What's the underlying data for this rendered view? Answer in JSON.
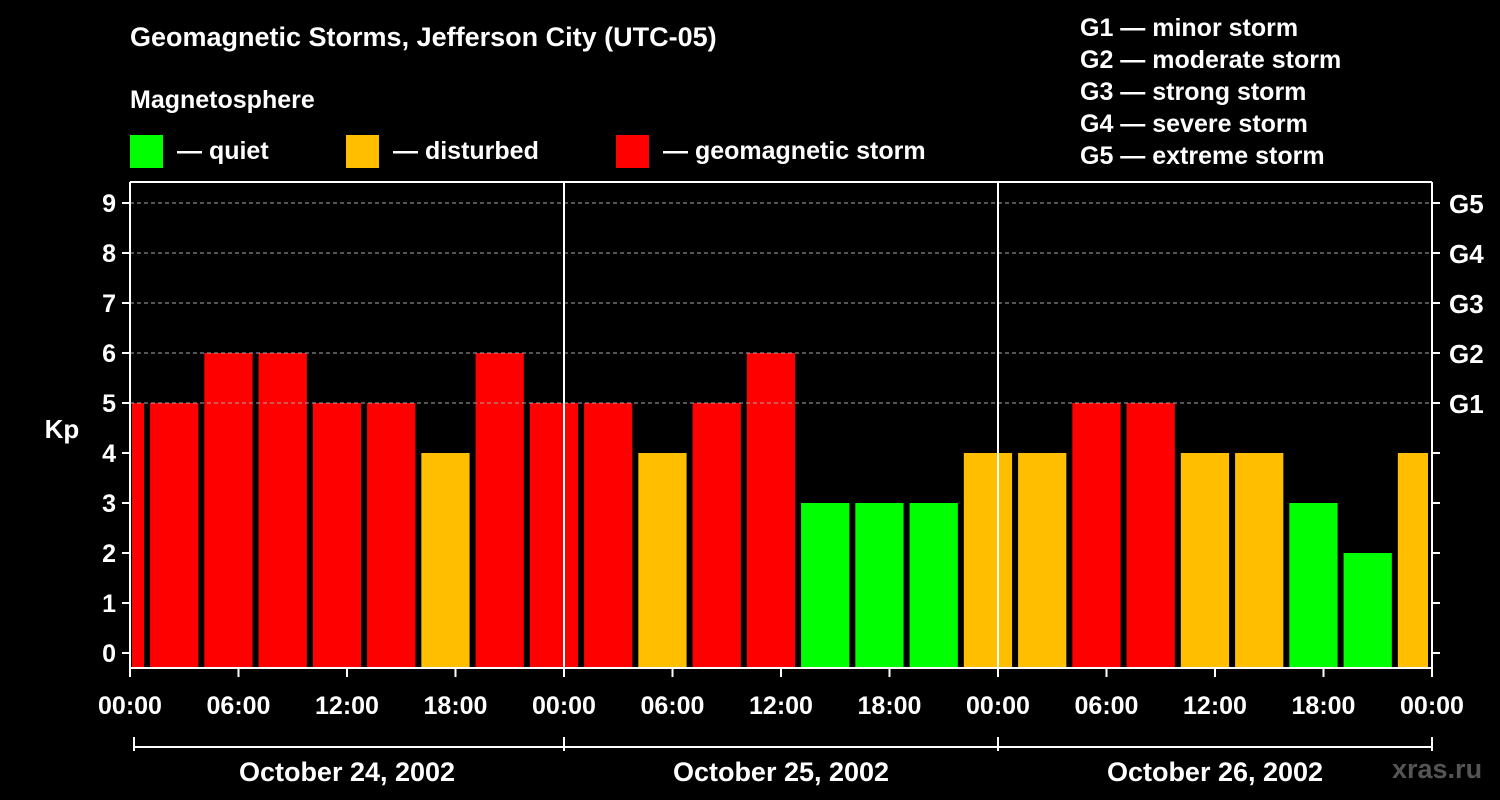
{
  "header": {
    "title": "Geomagnetic Storms, Jefferson City (UTC-05)",
    "subtitle": "Magnetosphere"
  },
  "legend": [
    {
      "label": "— quiet",
      "color": "#00FF00"
    },
    {
      "label": "— disturbed",
      "color": "#FFBF00"
    },
    {
      "label": "— geomagnetic storm",
      "color": "#FF0000"
    }
  ],
  "g_scale": [
    "G1 — minor storm",
    "G2 — moderate storm",
    "G3 — strong storm",
    "G4 — severe storm",
    "G5 — extreme storm"
  ],
  "watermark": "xras.ru",
  "chart_data": {
    "type": "bar",
    "title": "Geomagnetic Storms, Jefferson City (UTC-05)",
    "ylabel": "Kp",
    "ylim": [
      0,
      9
    ],
    "yticks": [
      "0",
      "1",
      "2",
      "3",
      "4",
      "5",
      "6",
      "7",
      "8",
      "9"
    ],
    "right_ticks": [
      {
        "kp": 5,
        "label": "G1"
      },
      {
        "kp": 6,
        "label": "G2"
      },
      {
        "kp": 7,
        "label": "G3"
      },
      {
        "kp": 8,
        "label": "G4"
      },
      {
        "kp": 9,
        "label": "G5"
      }
    ],
    "x_range_hours": [
      0,
      72
    ],
    "x_tick_hours": [
      0,
      6,
      12,
      18,
      24,
      30,
      36,
      42,
      48,
      54,
      60,
      66,
      72
    ],
    "x_tick_labels": [
      "00:00",
      "06:00",
      "12:00",
      "18:00",
      "00:00",
      "06:00",
      "12:00",
      "18:00",
      "00:00",
      "06:00",
      "12:00",
      "18:00",
      "00:00"
    ],
    "day_labels": [
      "October 24, 2002",
      "October 25, 2002",
      "October 26, 2002"
    ],
    "day_boundary_hours": [
      24,
      48
    ],
    "levels": {
      "quiet": "#00FF00",
      "disturbed": "#FFBF00",
      "storm": "#FF0000"
    },
    "bars": [
      {
        "start": 0,
        "end": 1,
        "kp": 5,
        "level": "storm"
      },
      {
        "start": 1,
        "end": 4,
        "kp": 5,
        "level": "storm"
      },
      {
        "start": 4,
        "end": 7,
        "kp": 6,
        "level": "storm"
      },
      {
        "start": 7,
        "end": 10,
        "kp": 6,
        "level": "storm"
      },
      {
        "start": 10,
        "end": 13,
        "kp": 5,
        "level": "storm"
      },
      {
        "start": 13,
        "end": 16,
        "kp": 5,
        "level": "storm"
      },
      {
        "start": 16,
        "end": 19,
        "kp": 4,
        "level": "disturbed"
      },
      {
        "start": 19,
        "end": 22,
        "kp": 6,
        "level": "storm"
      },
      {
        "start": 22,
        "end": 25,
        "kp": 5,
        "level": "storm"
      },
      {
        "start": 25,
        "end": 28,
        "kp": 5,
        "level": "storm"
      },
      {
        "start": 28,
        "end": 31,
        "kp": 4,
        "level": "disturbed"
      },
      {
        "start": 31,
        "end": 34,
        "kp": 5,
        "level": "storm"
      },
      {
        "start": 34,
        "end": 37,
        "kp": 6,
        "level": "storm"
      },
      {
        "start": 37,
        "end": 40,
        "kp": 3,
        "level": "quiet"
      },
      {
        "start": 40,
        "end": 43,
        "kp": 3,
        "level": "quiet"
      },
      {
        "start": 43,
        "end": 46,
        "kp": 3,
        "level": "quiet"
      },
      {
        "start": 46,
        "end": 49,
        "kp": 4,
        "level": "disturbed"
      },
      {
        "start": 49,
        "end": 52,
        "kp": 4,
        "level": "disturbed"
      },
      {
        "start": 52,
        "end": 55,
        "kp": 5,
        "level": "storm"
      },
      {
        "start": 55,
        "end": 58,
        "kp": 5,
        "level": "storm"
      },
      {
        "start": 58,
        "end": 61,
        "kp": 4,
        "level": "disturbed"
      },
      {
        "start": 61,
        "end": 64,
        "kp": 4,
        "level": "disturbed"
      },
      {
        "start": 64,
        "end": 67,
        "kp": 3,
        "level": "quiet"
      },
      {
        "start": 67,
        "end": 70,
        "kp": 2,
        "level": "quiet"
      },
      {
        "start": 70,
        "end": 72,
        "kp": 4,
        "level": "disturbed"
      }
    ]
  }
}
